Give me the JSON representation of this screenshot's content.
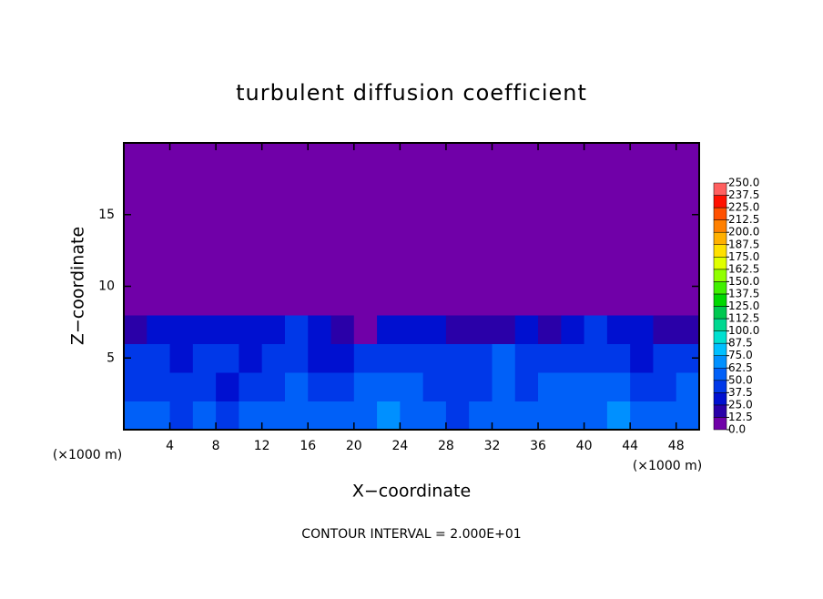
{
  "chart_data": {
    "type": "heatmap",
    "title": "turbulent diffusion coefficient",
    "x_label": "X−coordinate",
    "y_label": "Z−coordinate",
    "x_unit_label": "(×1000 m)",
    "y_unit_label": "(×1000 m)",
    "note": "CONTOUR INTERVAL = 2.000E+01",
    "xlim": [
      0,
      50
    ],
    "ylim": [
      0,
      20
    ],
    "xticks": [
      4,
      8,
      12,
      16,
      20,
      24,
      28,
      32,
      36,
      40,
      44,
      48
    ],
    "yticks": [
      5,
      10,
      15
    ],
    "x": [
      1,
      3,
      5,
      7,
      9,
      11,
      13,
      15,
      17,
      19,
      21,
      23,
      25,
      27,
      29,
      31,
      33,
      35,
      37,
      39,
      41,
      43,
      45,
      47,
      49
    ],
    "y": [
      1,
      3,
      5,
      7,
      9,
      11,
      13,
      15,
      17,
      19
    ],
    "z": [
      [
        55,
        62,
        48,
        50,
        45,
        58,
        52,
        60,
        55,
        50,
        62,
        65,
        58,
        50,
        48,
        60,
        55,
        52,
        58,
        62,
        60,
        65,
        55,
        58,
        60
      ],
      [
        45,
        40,
        38,
        42,
        35,
        40,
        45,
        52,
        40,
        38,
        55,
        60,
        50,
        40,
        42,
        48,
        55,
        45,
        50,
        58,
        52,
        55,
        45,
        42,
        50
      ],
      [
        42,
        38,
        35,
        40,
        38,
        35,
        42,
        45,
        30,
        35,
        48,
        40,
        42,
        45,
        38,
        40,
        50,
        45,
        40,
        45,
        42,
        38,
        35,
        40,
        45
      ],
      [
        20,
        30,
        32,
        28,
        30,
        35,
        35,
        38,
        30,
        20,
        12,
        25,
        28,
        25,
        22,
        20,
        18,
        28,
        22,
        35,
        38,
        35,
        30,
        20,
        15
      ],
      [
        0,
        0,
        0,
        0,
        0,
        0,
        5,
        8,
        0,
        0,
        0,
        0,
        0,
        0,
        0,
        0,
        0,
        0,
        0,
        0,
        0,
        5,
        0,
        0,
        0
      ],
      [
        0,
        0,
        0,
        0,
        0,
        0,
        0,
        0,
        0,
        0,
        0,
        0,
        0,
        0,
        0,
        0,
        0,
        0,
        0,
        0,
        0,
        0,
        0,
        0,
        0
      ],
      [
        0,
        0,
        0,
        0,
        0,
        0,
        0,
        0,
        0,
        0,
        0,
        0,
        0,
        0,
        0,
        0,
        0,
        0,
        0,
        0,
        0,
        0,
        0,
        0,
        0
      ],
      [
        0,
        0,
        0,
        0,
        0,
        0,
        0,
        0,
        0,
        0,
        0,
        0,
        0,
        0,
        0,
        0,
        0,
        0,
        0,
        0,
        0,
        0,
        0,
        0,
        0
      ],
      [
        0,
        0,
        0,
        0,
        0,
        0,
        0,
        0,
        0,
        0,
        0,
        0,
        0,
        0,
        0,
        0,
        0,
        0,
        0,
        0,
        0,
        0,
        0,
        0,
        0
      ],
      [
        0,
        0,
        0,
        0,
        0,
        0,
        0,
        0,
        0,
        0,
        0,
        0,
        0,
        0,
        0,
        0,
        0,
        0,
        0,
        0,
        0,
        0,
        0,
        0,
        0
      ]
    ],
    "colorbar": {
      "ticks": [
        {
          "value": 0,
          "label": "0.0"
        },
        {
          "value": 12.5,
          "label": "12.5"
        },
        {
          "value": 25,
          "label": "25.0"
        },
        {
          "value": 37.5,
          "label": "37.5"
        },
        {
          "value": 50,
          "label": "50.0"
        },
        {
          "value": 62.5,
          "label": "62.5"
        },
        {
          "value": 75,
          "label": "75.0"
        },
        {
          "value": 87.5,
          "label": "87.5"
        },
        {
          "value": 100,
          "label": "100.0"
        },
        {
          "value": 112.5,
          "label": "112.5"
        },
        {
          "value": 125,
          "label": "125.0"
        },
        {
          "value": 137.5,
          "label": "137.5"
        },
        {
          "value": 150,
          "label": "150.0"
        },
        {
          "value": 162.5,
          "label": "162.5"
        },
        {
          "value": 175,
          "label": "175.0"
        },
        {
          "value": 187.5,
          "label": "187.5"
        },
        {
          "value": 200,
          "label": "200.0"
        },
        {
          "value": 212.5,
          "label": "212.5"
        },
        {
          "value": 225,
          "label": "225.0"
        },
        {
          "value": 237.5,
          "label": "237.5"
        },
        {
          "value": 250,
          "label": "250.0"
        }
      ],
      "colors": [
        "#7000a8",
        "#2a00a8",
        "#0010d0",
        "#0038e8",
        "#0060f8",
        "#0090ff",
        "#00c0ff",
        "#00e0d0",
        "#00d890",
        "#00c850",
        "#00d800",
        "#40f000",
        "#90ff00",
        "#e0ff00",
        "#ffe000",
        "#ffb000",
        "#ff8000",
        "#ff5000",
        "#ff1000",
        "#ff6060"
      ]
    }
  }
}
